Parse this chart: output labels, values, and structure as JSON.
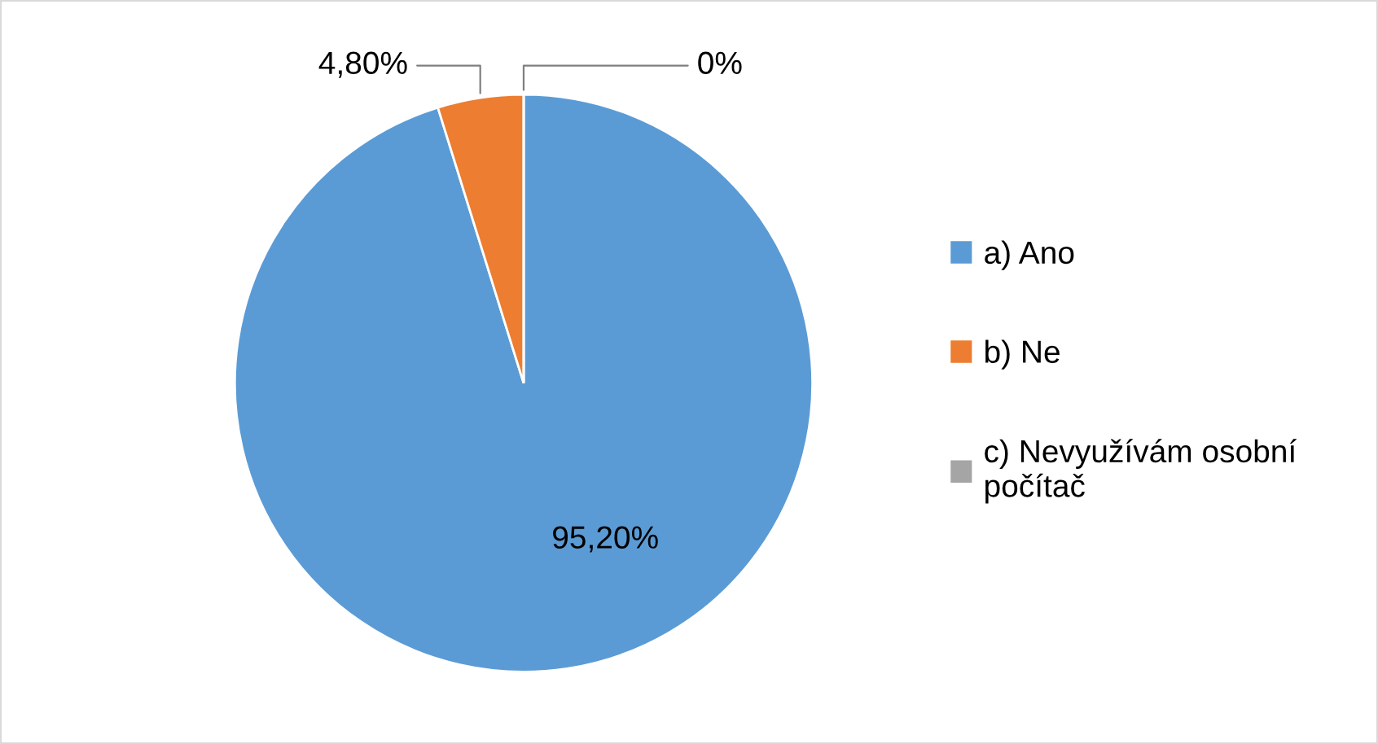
{
  "chart_data": {
    "type": "pie",
    "categories": [
      "a) Ano",
      "b) Ne",
      "c) Nevyužívám osobní počítač"
    ],
    "values": [
      95.2,
      4.8,
      0
    ],
    "colors": [
      "#5b9bd5",
      "#ed7d31",
      "#a5a5a5"
    ],
    "value_labels": [
      "95,20%",
      "4,80%",
      "0%"
    ],
    "legend": "right"
  }
}
